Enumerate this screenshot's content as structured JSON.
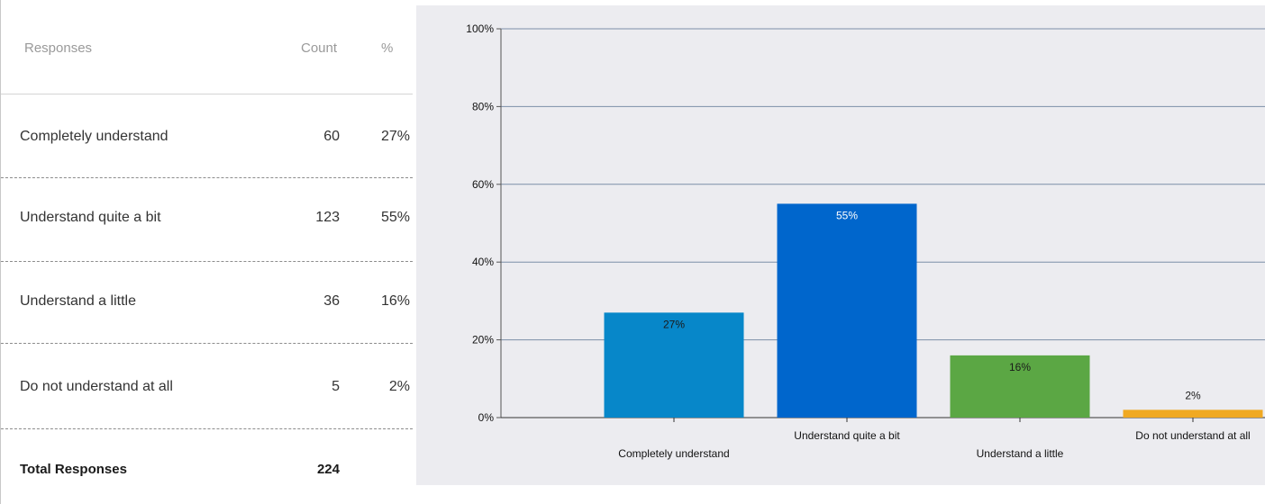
{
  "table": {
    "headers": {
      "responses": "Responses",
      "count": "Count",
      "percent": "%"
    },
    "rows": [
      {
        "label": "Completely understand",
        "count": "60",
        "percent": "27%"
      },
      {
        "label": "Understand quite a bit",
        "count": "123",
        "percent": "55%"
      },
      {
        "label": "Understand a little",
        "count": "36",
        "percent": "16%"
      },
      {
        "label": "Do not understand at all",
        "count": "5",
        "percent": "2%"
      }
    ],
    "total": {
      "label": "Total Responses",
      "count": "224"
    }
  },
  "chart_data": {
    "type": "bar",
    "categories": [
      "Completely understand",
      "Understand quite a bit",
      "Understand a little",
      "Do not understand at all"
    ],
    "values": [
      27,
      55,
      16,
      2
    ],
    "data_labels": [
      "27%",
      "55%",
      "16%",
      "2%"
    ],
    "colors": [
      "#0787c9",
      "#0066cc",
      "#5ba744",
      "#f0a922"
    ],
    "label_colors": [
      "#1a1a1a",
      "#ffffff",
      "#1a1a1a",
      "#1a1a1a"
    ],
    "ylim": [
      0,
      100
    ],
    "y_ticks": [
      0,
      20,
      40,
      60,
      80,
      100
    ],
    "y_tick_labels": [
      "0%",
      "20%",
      "40%",
      "60%",
      "80%",
      "100%"
    ],
    "grid": true,
    "legend": "none"
  }
}
